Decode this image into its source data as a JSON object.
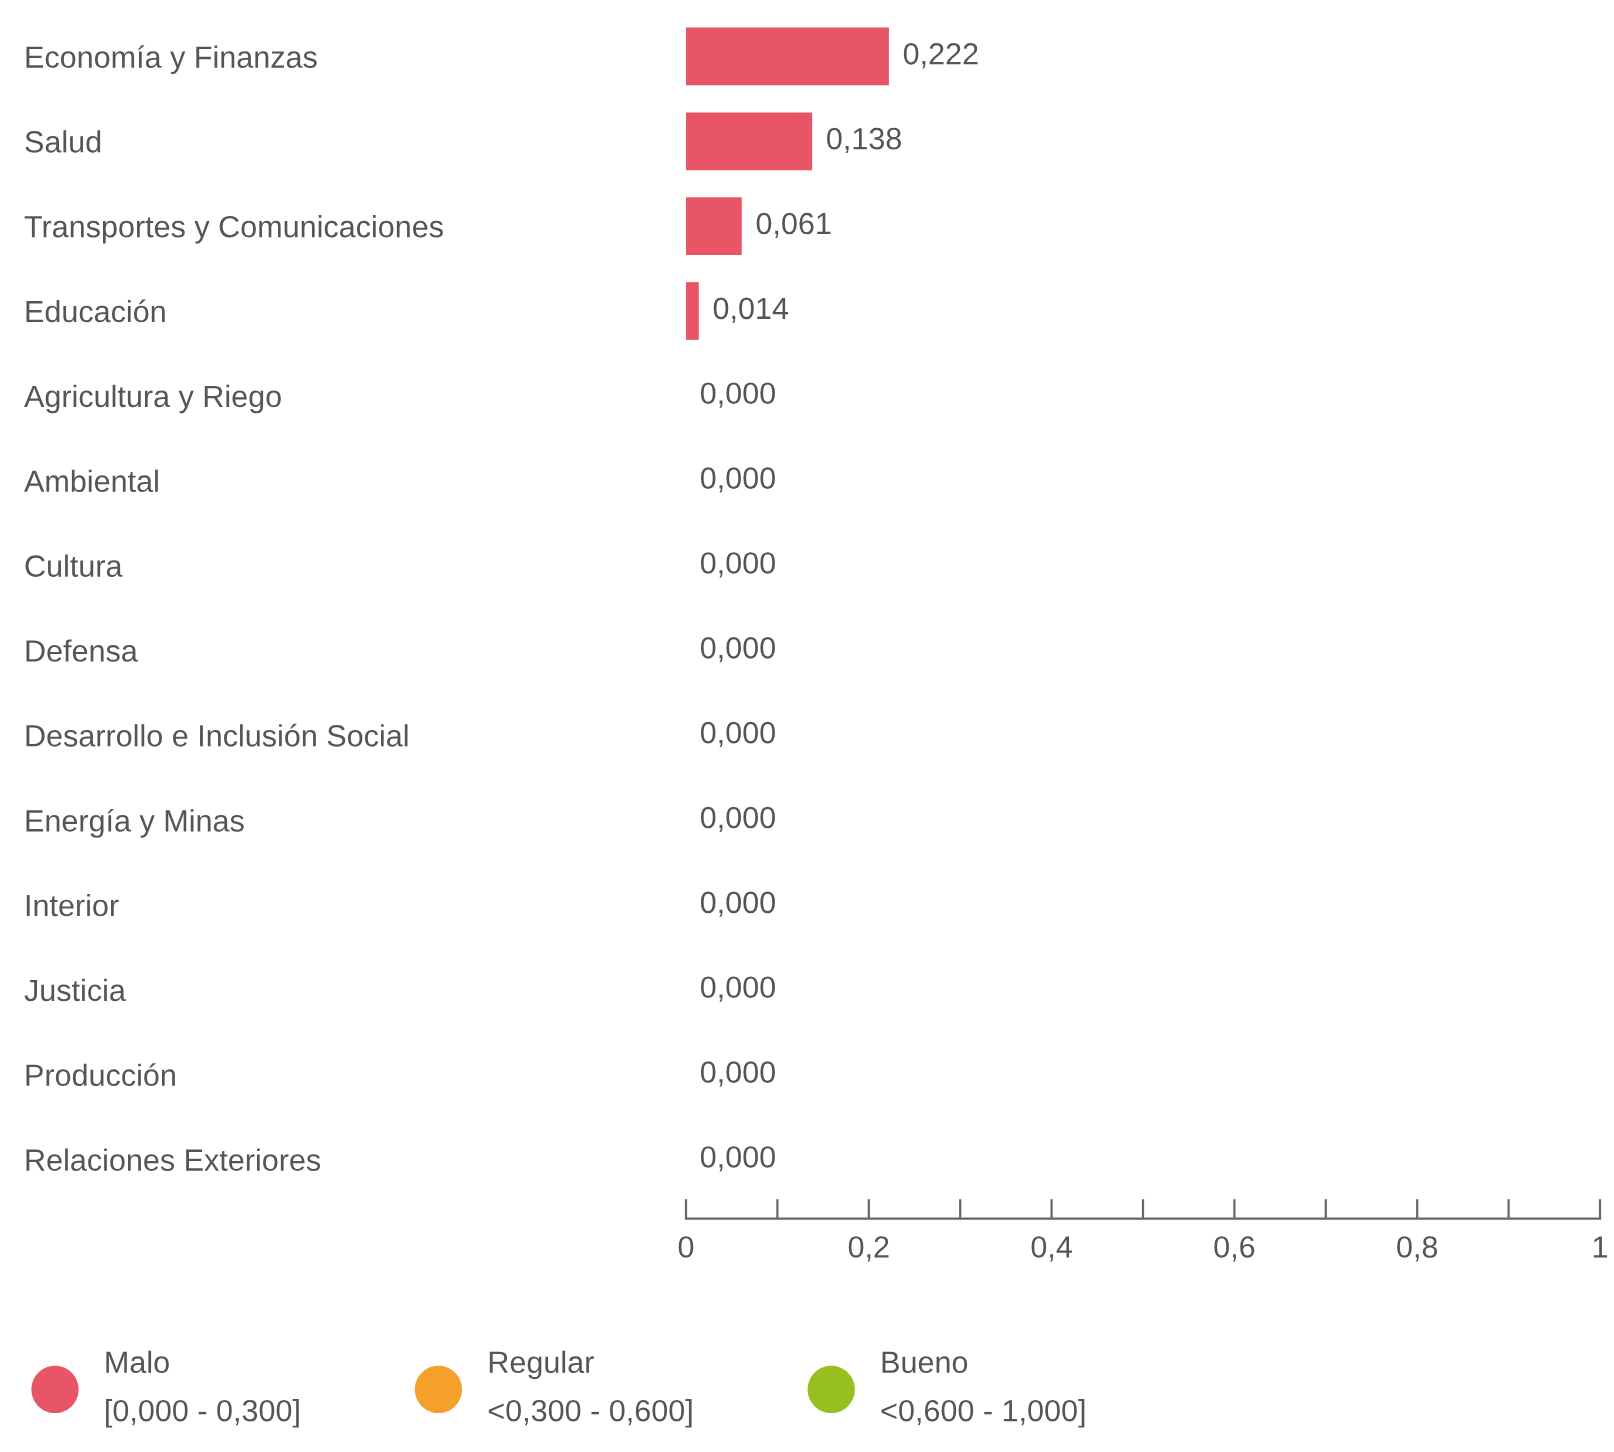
{
  "chart_data": {
    "type": "bar",
    "orientation": "horizontal",
    "categories": [
      "Economía y Finanzas",
      "Salud",
      "Transportes y Comunicaciones",
      "Educación",
      "Agricultura y Riego",
      "Ambiental",
      "Cultura",
      "Defensa",
      "Desarrollo e Inclusión Social",
      "Energía y Minas",
      "Interior",
      "Justicia",
      "Producción",
      "Relaciones Exteriores"
    ],
    "series": [
      {
        "name": "Malo\n[0,000 - 0,300]",
        "color": "#e85566",
        "values": [
          0.222,
          0.138,
          0.061,
          0.014,
          0,
          0,
          0,
          0,
          0,
          0,
          0,
          0,
          0,
          0
        ],
        "value_labels": [
          "0,222",
          "0,138",
          "0,061",
          "0,014",
          "0,000",
          "0,000",
          "0,000",
          "0,000",
          "0,000",
          "0,000",
          "0,000",
          "0,000",
          "0,000",
          "0,000"
        ]
      },
      {
        "name": "Regular\n<0,300 - 0,600]",
        "color": "#f5a02a",
        "values": [
          null,
          null,
          null,
          null,
          null,
          null,
          null,
          null,
          null,
          null,
          null,
          null,
          null,
          null
        ]
      },
      {
        "name": "Bueno\n<0,600 - 1,000]",
        "color": "#97bf1f",
        "values": [
          null,
          null,
          null,
          null,
          null,
          null,
          null,
          null,
          null,
          null,
          null,
          null,
          null,
          null
        ]
      }
    ],
    "xlim": [
      0,
      1
    ],
    "xticks": [
      0,
      {
        "value": 0.1,
        "label": null
      },
      {
        "value": 0.2,
        "label": "0,2"
      },
      {
        "value": 0.3,
        "label": null
      },
      {
        "value": 0.4,
        "label": "0,4"
      },
      {
        "value": 0.5,
        "label": null
      },
      {
        "value": 0.6,
        "label": "0,6"
      },
      {
        "value": 0.7,
        "label": null
      },
      {
        "value": 0.8,
        "label": "0,8"
      },
      {
        "value": 0.9,
        "label": null
      },
      1
    ],
    "grid": false,
    "legend": "bottom left"
  }
}
